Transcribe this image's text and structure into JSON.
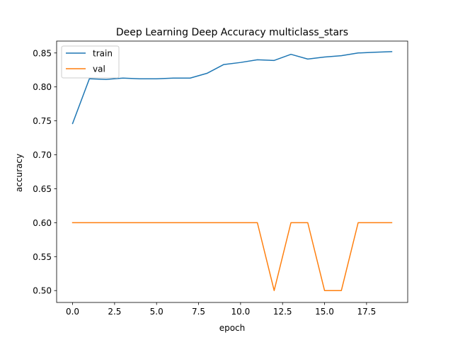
{
  "chart_data": {
    "type": "line",
    "title": "Deep Learning Deep Accuracy multiclass_stars",
    "xlabel": "epoch",
    "ylabel": "accuracy",
    "xlim": [
      -0.95,
      19.95
    ],
    "ylim": [
      0.4825,
      0.8675
    ],
    "xticks": [
      0.0,
      2.5,
      5.0,
      7.5,
      10.0,
      12.5,
      15.0,
      17.5
    ],
    "xtick_labels": [
      "0.0",
      "2.5",
      "5.0",
      "7.5",
      "10.0",
      "12.5",
      "15.0",
      "17.5"
    ],
    "yticks": [
      0.5,
      0.55,
      0.6,
      0.65,
      0.7,
      0.75,
      0.8,
      0.85
    ],
    "ytick_labels": [
      "0.50",
      "0.55",
      "0.60",
      "0.65",
      "0.70",
      "0.75",
      "0.80",
      "0.85"
    ],
    "grid": false,
    "legend_position": "top-left",
    "x": [
      0,
      1,
      2,
      3,
      4,
      5,
      6,
      7,
      8,
      9,
      10,
      11,
      12,
      13,
      14,
      15,
      16,
      17,
      18,
      19
    ],
    "series": [
      {
        "name": "train",
        "color": "#1f77b4",
        "values": [
          0.746,
          0.812,
          0.811,
          0.813,
          0.812,
          0.812,
          0.813,
          0.813,
          0.82,
          0.833,
          0.836,
          0.84,
          0.839,
          0.848,
          0.841,
          0.844,
          0.846,
          0.85,
          0.851,
          0.852
        ]
      },
      {
        "name": "val",
        "color": "#ff7f0e",
        "values": [
          0.6,
          0.6,
          0.6,
          0.6,
          0.6,
          0.6,
          0.6,
          0.6,
          0.6,
          0.6,
          0.6,
          0.6,
          0.5,
          0.6,
          0.6,
          0.5,
          0.5,
          0.6,
          0.6,
          0.6
        ]
      }
    ]
  }
}
